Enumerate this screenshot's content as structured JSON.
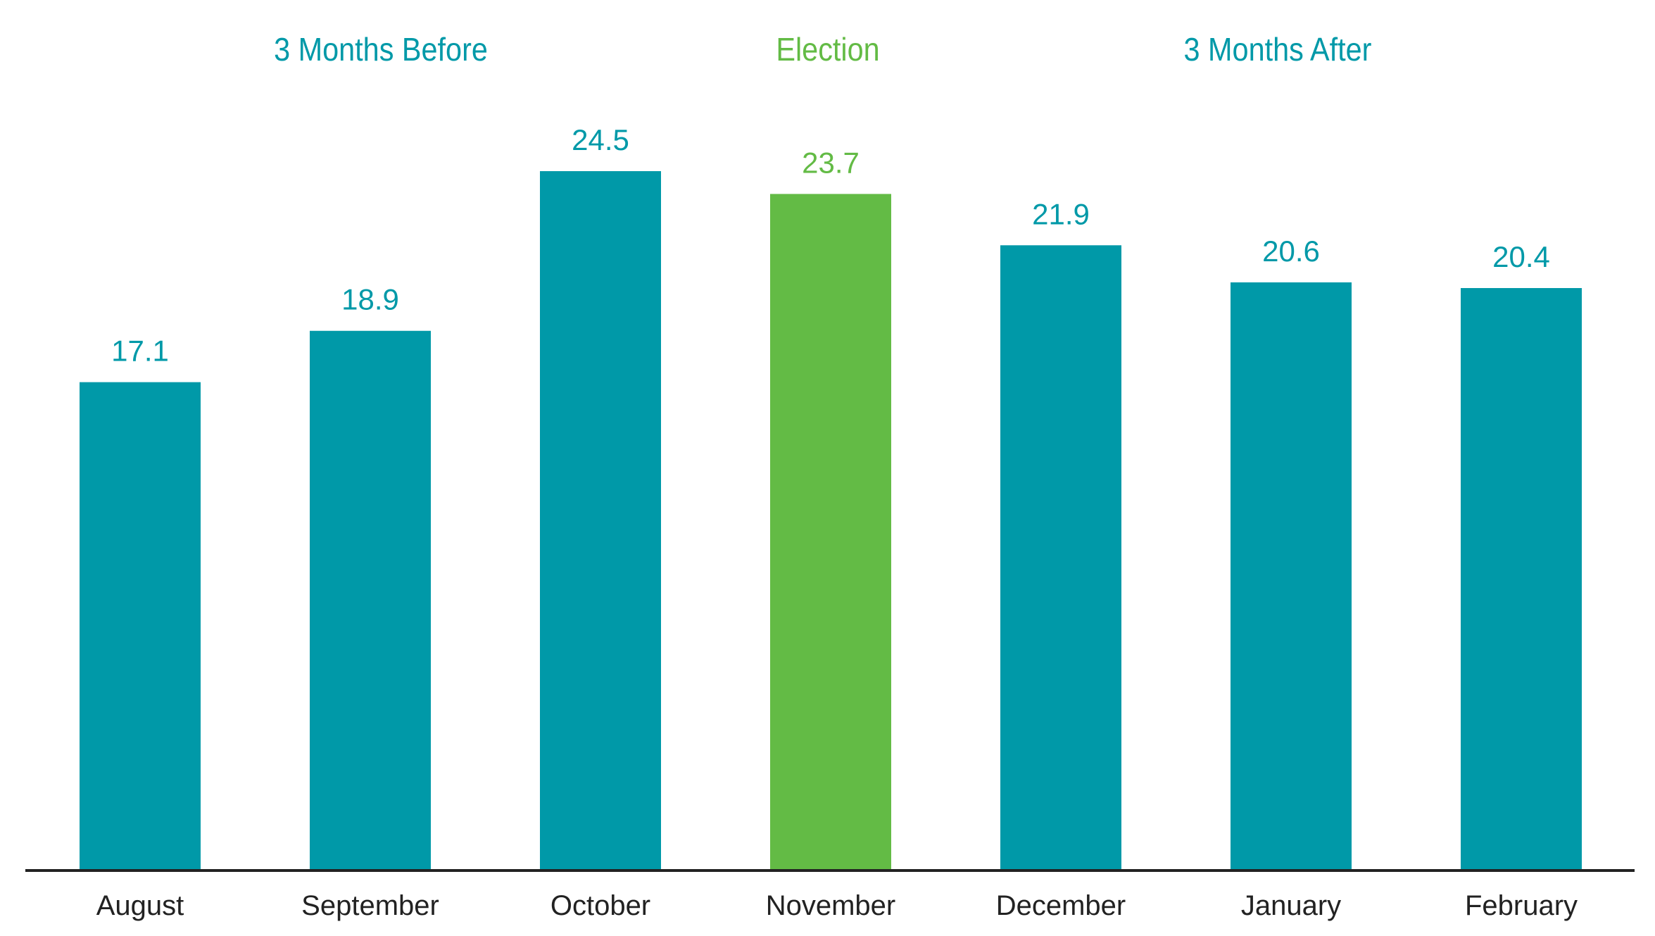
{
  "chart_data": {
    "type": "bar",
    "title": "",
    "xlabel": "",
    "ylabel": "",
    "ylim": [
      0,
      24.5
    ],
    "grid": false,
    "categories": [
      "August",
      "September",
      "October",
      "November",
      "December",
      "January",
      "February"
    ],
    "values": [
      17.1,
      18.9,
      24.5,
      23.7,
      21.9,
      20.6,
      20.4
    ],
    "value_labels": [
      "17.1",
      "18.9",
      "24.5",
      "23.7",
      "21.9",
      "20.6",
      "20.4"
    ],
    "highlight_index": 3,
    "group_labels": {
      "before": "3 Months Before",
      "election": "Election",
      "after": "3 Months After"
    }
  },
  "colors": {
    "bar": "#0099a8",
    "highlight": "#63bb45",
    "axis": "#222222",
    "category_text": "#222222"
  }
}
